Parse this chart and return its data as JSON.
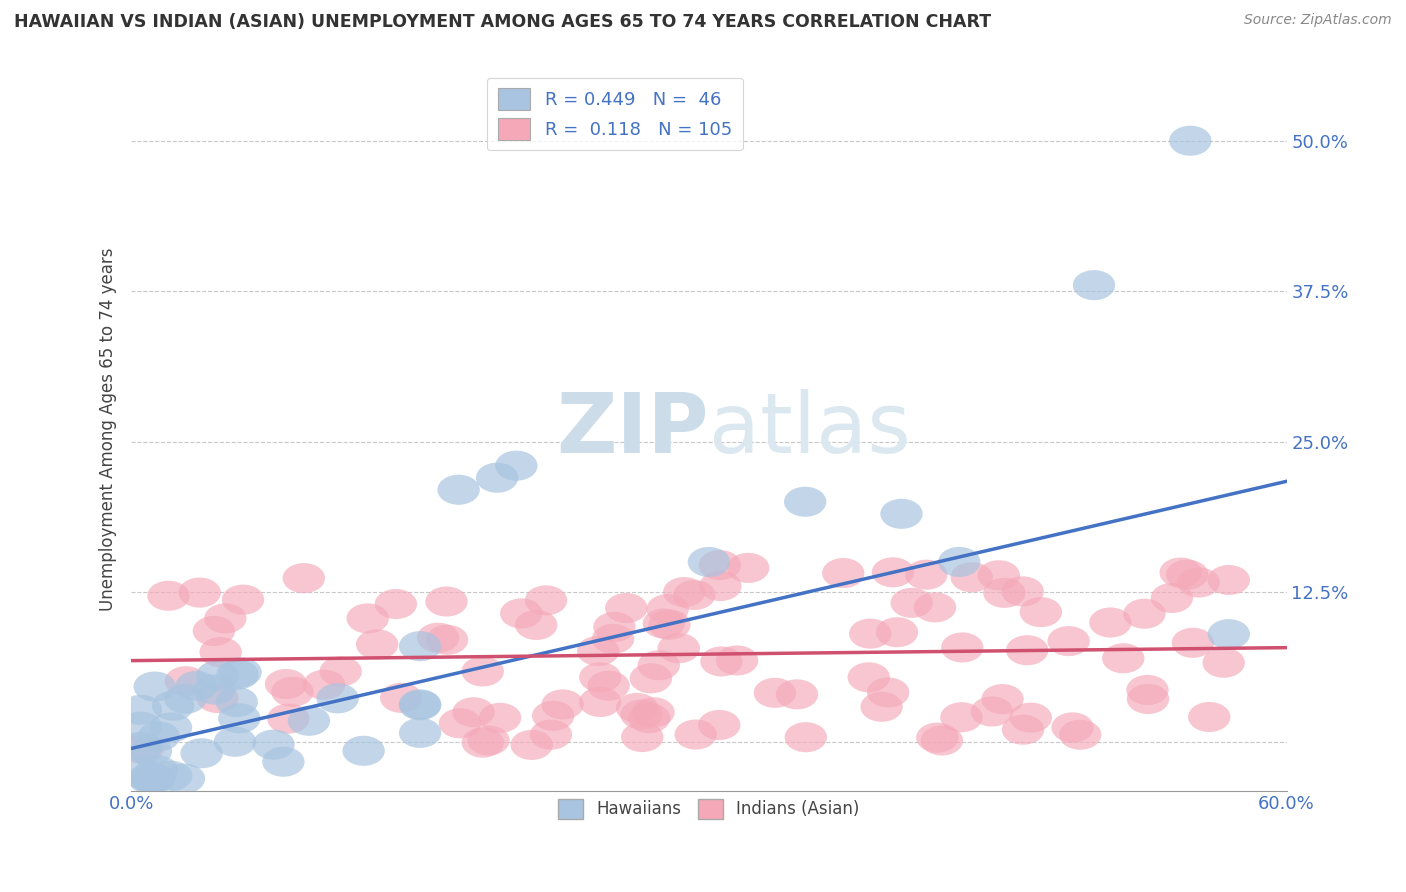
{
  "title": "HAWAIIAN VS INDIAN (ASIAN) UNEMPLOYMENT AMONG AGES 65 TO 74 YEARS CORRELATION CHART",
  "source": "Source: ZipAtlas.com",
  "ylabel": "Unemployment Among Ages 65 to 74 years",
  "xlim": [
    0.0,
    0.6
  ],
  "ylim": [
    -0.04,
    0.56
  ],
  "ytick_vals": [
    0.0,
    0.125,
    0.25,
    0.375,
    0.5
  ],
  "ytick_labels": [
    "",
    "12.5%",
    "25.0%",
    "37.5%",
    "50.0%"
  ],
  "grid_color": "#c8c8c8",
  "background_color": "#ffffff",
  "hawaiian_color": "#a8c4e0",
  "indian_color": "#f4a8b8",
  "hawaiian_line_color": "#4472c4",
  "indian_line_color": "#d05070",
  "hawaiian_slope": 0.37,
  "hawaiian_intercept": -0.005,
  "indian_slope": 0.018,
  "indian_intercept": 0.068,
  "legend_text_color": "#4472c4",
  "watermark_color": "#dce8f0",
  "title_color": "#333333",
  "source_color": "#888888",
  "ylabel_color": "#444444"
}
